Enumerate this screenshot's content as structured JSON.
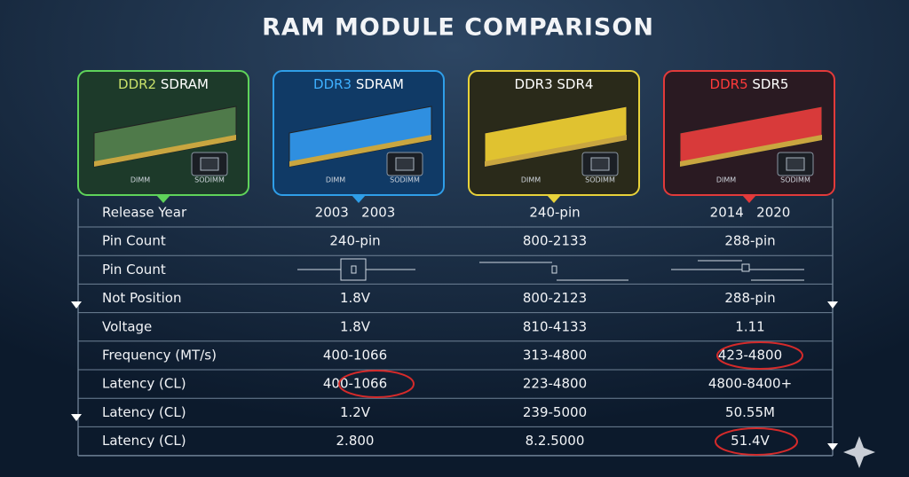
{
  "title": "RAM MODULE COMPARISON",
  "modules": [
    {
      "name": "DDR2",
      "variant": "SDRAM",
      "form_factors": [
        "DIMM",
        "SODIMM"
      ]
    },
    {
      "name": "DDR3",
      "variant": "SDRAM",
      "form_factors": [
        "DIMM",
        "SODIMM"
      ]
    },
    {
      "name": "DDR3",
      "variant": "SDR4",
      "form_factors": [
        "DIMM",
        "SODIMM"
      ]
    },
    {
      "name": "DDR5",
      "variant": "SDR5",
      "form_factors": [
        "DIMM",
        "SODIMM"
      ]
    }
  ],
  "table": {
    "rows": [
      [
        "Release Year",
        "2003   2003",
        "240-pin",
        "2014   2020"
      ],
      [
        "Pin Count",
        "240-pin",
        "800-2133",
        "288-pin"
      ],
      [
        "Pin Count"
      ],
      [
        "Not Position",
        "1.8V",
        "800-2123",
        "288-pin"
      ],
      [
        "Voltage",
        "1.8V",
        "810-4133",
        "1.11"
      ],
      [
        "Frequency (MT/s)",
        "400-1066",
        "313-4800",
        "423-4800"
      ],
      [
        "Latency (CL)",
        "400-1066",
        "223-4800",
        "4800-8400+"
      ],
      [
        "Latency (CL)",
        "1.2V",
        "239-5000",
        "50.55M"
      ],
      [
        "Latency (CL)",
        "2.800",
        "8.2.5000",
        "51.4V"
      ]
    ]
  }
}
